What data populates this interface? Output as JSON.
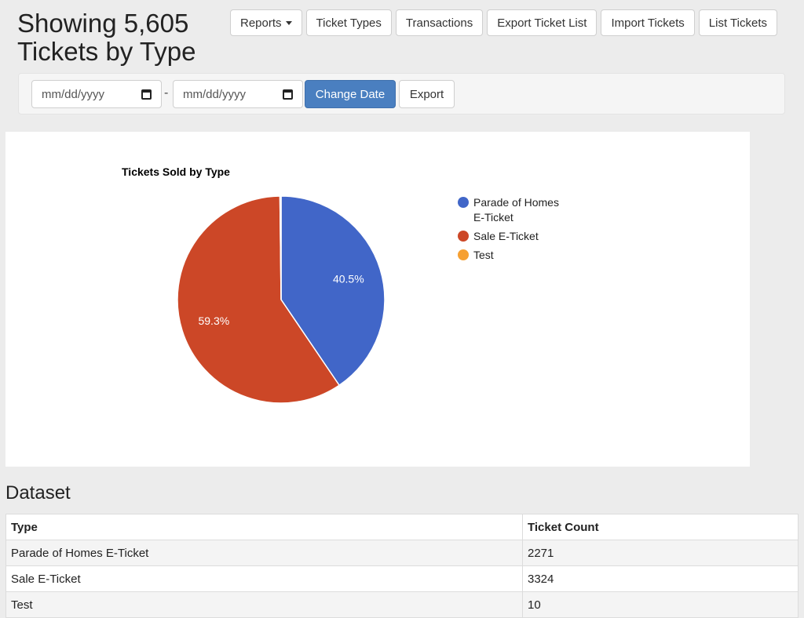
{
  "header": {
    "title": "Showing 5,605 Tickets by Type"
  },
  "toolbar": {
    "reports_label": "Reports",
    "ticket_types_label": "Ticket Types",
    "transactions_label": "Transactions",
    "export_ticket_list_label": "Export Ticket List",
    "import_tickets_label": "Import Tickets",
    "list_tickets_label": "List Tickets"
  },
  "filter": {
    "start_date_placeholder": "mm/dd/yyyy",
    "end_date_placeholder": "mm/dd/yyyy",
    "separator": "-",
    "change_date_label": "Change Date",
    "export_label": "Export"
  },
  "chart_data": {
    "type": "pie",
    "title": "Tickets Sold by Type",
    "categories": [
      "Parade of Homes E-Ticket",
      "Sale E-Ticket",
      "Test"
    ],
    "values": [
      2271,
      3324,
      10
    ],
    "slice_labels": [
      "40.5%",
      "59.3%",
      ""
    ],
    "colors": [
      "#4166c8",
      "#cc4727",
      "#f6a032"
    ],
    "legend_labels": [
      [
        "Parade of Homes",
        "E-Ticket"
      ],
      [
        "Sale E-Ticket"
      ],
      [
        "Test"
      ]
    ],
    "legend": "right"
  },
  "dataset": {
    "heading": "Dataset",
    "columns": [
      "Type",
      "Ticket Count"
    ],
    "rows": [
      [
        "Parade of Homes E-Ticket",
        "2271"
      ],
      [
        "Sale E-Ticket",
        "3324"
      ],
      [
        "Test",
        "10"
      ]
    ]
  }
}
